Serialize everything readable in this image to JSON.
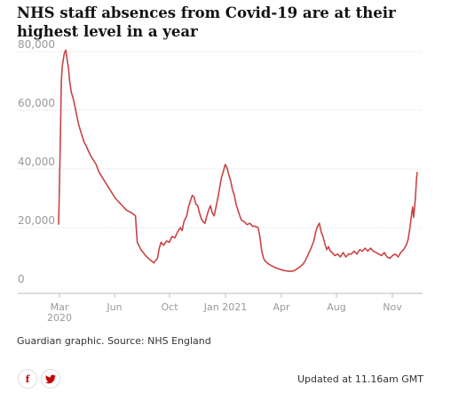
{
  "title": "NHS staff absences from Covid-19 are at their highest level in a year",
  "source": "Guardian graphic. Source: NHS England",
  "updated": "Updated at 11.16am GMT",
  "share": {
    "facebook_glyph": "f",
    "twitter_glyph": "t"
  },
  "colors": {
    "line": "#c94444",
    "grid": "#d6d6d6",
    "axis_text": "#999999",
    "title": "#121212"
  },
  "chart_data": {
    "type": "line",
    "title": "NHS staff absences from Covid-19 are at their highest level in a year",
    "ylim": [
      0,
      80000
    ],
    "y_ticks": [
      0,
      20000,
      40000,
      60000,
      80000
    ],
    "y_tick_labels": [
      "0",
      "20,000",
      "40,000",
      "60,000",
      "80,000"
    ],
    "x_tick_labels": [
      "Mar\n2020",
      "Jun",
      "Oct",
      "Jan 2021",
      "Apr",
      "Aug",
      "Nov"
    ],
    "grid": true,
    "series": [
      {
        "values": [
          [
            0,
            21000
          ],
          [
            1,
            35000
          ],
          [
            2,
            52000
          ],
          [
            3,
            70000
          ],
          [
            4,
            75000
          ],
          [
            5,
            77000
          ],
          [
            6,
            79000
          ],
          [
            7,
            80000
          ],
          [
            8,
            80500
          ],
          [
            9,
            78000
          ],
          [
            10,
            76000
          ],
          [
            11,
            74000
          ],
          [
            12,
            70000
          ],
          [
            13,
            68000
          ],
          [
            14,
            66000
          ],
          [
            16,
            64000
          ],
          [
            18,
            61000
          ],
          [
            20,
            58000
          ],
          [
            22,
            55000
          ],
          [
            24,
            53000
          ],
          [
            26,
            51000
          ],
          [
            28,
            49000
          ],
          [
            30,
            48000
          ],
          [
            32,
            46500
          ],
          [
            35,
            44500
          ],
          [
            38,
            43000
          ],
          [
            41,
            41500
          ],
          [
            44,
            39000
          ],
          [
            47,
            37500
          ],
          [
            50,
            36000
          ],
          [
            53,
            34500
          ],
          [
            56,
            33000
          ],
          [
            59,
            31500
          ],
          [
            62,
            30000
          ],
          [
            65,
            29000
          ],
          [
            68,
            28000
          ],
          [
            71,
            27000
          ],
          [
            74,
            26000
          ],
          [
            77,
            25500
          ],
          [
            80,
            25000
          ],
          [
            82,
            24500
          ],
          [
            84,
            24000
          ],
          [
            86,
            15000
          ],
          [
            90,
            12500
          ],
          [
            95,
            10500
          ],
          [
            100,
            9000
          ],
          [
            104,
            8000
          ],
          [
            108,
            9500
          ],
          [
            110,
            13000
          ],
          [
            112,
            15000
          ],
          [
            115,
            14000
          ],
          [
            118,
            15500
          ],
          [
            121,
            15000
          ],
          [
            124,
            17000
          ],
          [
            127,
            16500
          ],
          [
            130,
            18500
          ],
          [
            133,
            20000
          ],
          [
            135,
            19000
          ],
          [
            137,
            22000
          ],
          [
            140,
            24000
          ],
          [
            142,
            27000
          ],
          [
            144,
            29000
          ],
          [
            146,
            31000
          ],
          [
            148,
            30500
          ],
          [
            150,
            28000
          ],
          [
            152,
            27500
          ],
          [
            154,
            25000
          ],
          [
            156,
            23000
          ],
          [
            158,
            22000
          ],
          [
            160,
            21500
          ],
          [
            162,
            24000
          ],
          [
            164,
            26000
          ],
          [
            166,
            27500
          ],
          [
            168,
            25000
          ],
          [
            170,
            24000
          ],
          [
            172,
            27000
          ],
          [
            174,
            30000
          ],
          [
            176,
            33500
          ],
          [
            178,
            37000
          ],
          [
            180,
            39000
          ],
          [
            182,
            41500
          ],
          [
            184,
            40500
          ],
          [
            186,
            38000
          ],
          [
            188,
            36000
          ],
          [
            190,
            33000
          ],
          [
            192,
            31000
          ],
          [
            194,
            28000
          ],
          [
            196,
            26000
          ],
          [
            198,
            24000
          ],
          [
            200,
            22500
          ],
          [
            203,
            22000
          ],
          [
            206,
            21000
          ],
          [
            209,
            21500
          ],
          [
            212,
            20500
          ],
          [
            215,
            20500
          ],
          [
            218,
            20000
          ],
          [
            220,
            17000
          ],
          [
            222,
            12000
          ],
          [
            224,
            9500
          ],
          [
            226,
            8500
          ],
          [
            230,
            7500
          ],
          [
            234,
            6800
          ],
          [
            238,
            6200
          ],
          [
            242,
            5800
          ],
          [
            246,
            5400
          ],
          [
            250,
            5200
          ],
          [
            254,
            5100
          ],
          [
            258,
            5400
          ],
          [
            261,
            6000
          ],
          [
            264,
            6700
          ],
          [
            267,
            7500
          ],
          [
            270,
            9000
          ],
          [
            273,
            11000
          ],
          [
            276,
            13000
          ],
          [
            279,
            15500
          ],
          [
            281,
            18500
          ],
          [
            283,
            20500
          ],
          [
            285,
            21500
          ],
          [
            287,
            18500
          ],
          [
            289,
            17000
          ],
          [
            291,
            14500
          ],
          [
            293,
            12500
          ],
          [
            295,
            13500
          ],
          [
            297,
            12000
          ],
          [
            299,
            11500
          ],
          [
            302,
            10500
          ],
          [
            305,
            11000
          ],
          [
            308,
            10000
          ],
          [
            311,
            11500
          ],
          [
            314,
            10000
          ],
          [
            317,
            11000
          ],
          [
            320,
            11000
          ],
          [
            323,
            12000
          ],
          [
            326,
            11000
          ],
          [
            329,
            12500
          ],
          [
            332,
            12000
          ],
          [
            335,
            13000
          ],
          [
            338,
            12000
          ],
          [
            341,
            13000
          ],
          [
            344,
            12000
          ],
          [
            347,
            11500
          ],
          [
            350,
            11000
          ],
          [
            353,
            10500
          ],
          [
            356,
            11500
          ],
          [
            359,
            10000
          ],
          [
            362,
            9500
          ],
          [
            365,
            10500
          ],
          [
            368,
            11000
          ],
          [
            371,
            10000
          ],
          [
            374,
            11500
          ],
          [
            377,
            12500
          ],
          [
            380,
            14000
          ],
          [
            382,
            16000
          ],
          [
            384,
            20000
          ],
          [
            386,
            25000
          ],
          [
            387,
            27000
          ],
          [
            388,
            23500
          ],
          [
            390,
            30000
          ],
          [
            391,
            36000
          ],
          [
            392,
            39000
          ]
        ]
      }
    ]
  }
}
